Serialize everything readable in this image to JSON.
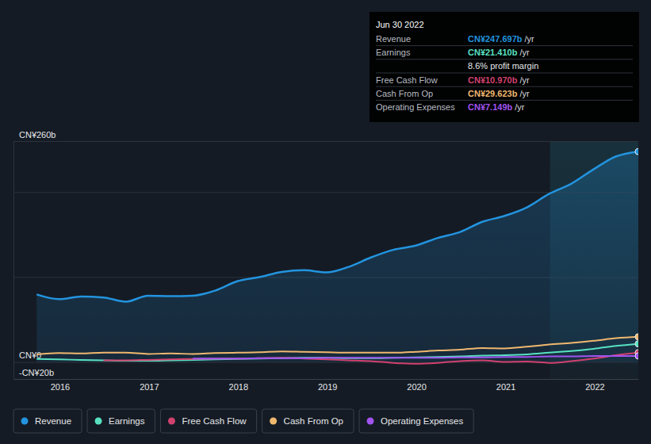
{
  "chart_data": {
    "type": "line",
    "x": [
      2015.74,
      2015.99,
      2016.24,
      2016.49,
      2016.74,
      2016.99,
      2017.24,
      2017.49,
      2017.74,
      2017.99,
      2018.24,
      2018.49,
      2018.74,
      2018.99,
      2019.24,
      2019.49,
      2019.74,
      2019.99,
      2020.24,
      2020.49,
      2020.74,
      2020.99,
      2021.24,
      2021.49,
      2021.74,
      2021.99,
      2022.24,
      2022.49
    ],
    "series": [
      {
        "name": "Revenue",
        "color": "#2394df",
        "type": "area",
        "values": [
          79.5,
          74,
          77,
          76,
          71,
          78,
          77.5,
          78,
          84,
          95,
          100,
          106,
          108,
          105.5,
          112,
          123,
          132,
          137,
          146,
          153,
          165,
          172,
          182,
          198,
          210,
          227,
          242,
          247.697
        ]
      },
      {
        "name": "Earnings",
        "color": "#58e1c1",
        "values": [
          3.5,
          3,
          2.5,
          2,
          1.5,
          1.5,
          2,
          2.5,
          3,
          3.5,
          4,
          4.5,
          5,
          5,
          4.5,
          4.5,
          5,
          5.5,
          6,
          6.5,
          7.5,
          8,
          9,
          11,
          13,
          15.5,
          19,
          21.41
        ]
      },
      {
        "name": "Free Cash Flow",
        "color": "#d1416e",
        "values": [
          null,
          null,
          null,
          2,
          2,
          2.5,
          3,
          3.5,
          4,
          4,
          4.5,
          5,
          4,
          3,
          2,
          1,
          -1,
          -2,
          -1,
          1,
          2,
          0,
          0.5,
          -1,
          1,
          4,
          8,
          10.97
        ]
      },
      {
        "name": "Cash From Op",
        "color": "#f0b86f",
        "values": [
          9,
          10.5,
          10,
          11,
          11,
          9.5,
          10,
          9.5,
          10.5,
          11,
          11.5,
          12.5,
          12,
          11.5,
          11,
          11,
          11,
          12,
          13.5,
          14.5,
          16.5,
          16,
          18,
          20.5,
          22.5,
          25,
          28,
          29.623
        ]
      },
      {
        "name": "Operating Expenses",
        "color": "#a054f0",
        "values": [
          null,
          null,
          null,
          null,
          null,
          null,
          null,
          4,
          4,
          4,
          4.5,
          4.5,
          4.5,
          5,
          5,
          5,
          5,
          5,
          5,
          5.5,
          5.5,
          6,
          6,
          6.5,
          6.5,
          7,
          7,
          7.149
        ]
      }
    ],
    "xlim": [
      2015.48,
      2022.49
    ],
    "xticks": [
      2016,
      2017,
      2018,
      2019,
      2020,
      2021,
      2022
    ],
    "ylim": [
      -20,
      260
    ],
    "yticks": [
      {
        "value": -20,
        "label": "-CN¥20b"
      },
      {
        "value": 0,
        "label": "CN¥0"
      },
      {
        "value": 100,
        "label": null
      },
      {
        "value": 200,
        "label": null
      },
      {
        "value": 260,
        "label": "CN¥260b"
      }
    ],
    "grid": true,
    "legend": "bottom",
    "highlight_range": [
      2021.5,
      2022.49
    ],
    "tooltip": {
      "date": "Jun 30 2022",
      "rows": [
        {
          "label": "Revenue",
          "value": "CN¥247.697b",
          "unit": "/yr",
          "color": "#2394df"
        },
        {
          "label": "Earnings",
          "value": "CN¥21.410b",
          "unit": "/yr",
          "color": "#58e1c1"
        },
        {
          "note": "8.6% profit margin"
        },
        {
          "label": "Free Cash Flow",
          "value": "CN¥10.970b",
          "unit": "/yr",
          "color": "#d1416e"
        },
        {
          "label": "Cash From Op",
          "value": "CN¥29.623b",
          "unit": "/yr",
          "color": "#f0b86f"
        },
        {
          "label": "Operating Expenses",
          "value": "CN¥7.149b",
          "unit": "/yr",
          "color": "#a054f0"
        }
      ]
    }
  }
}
